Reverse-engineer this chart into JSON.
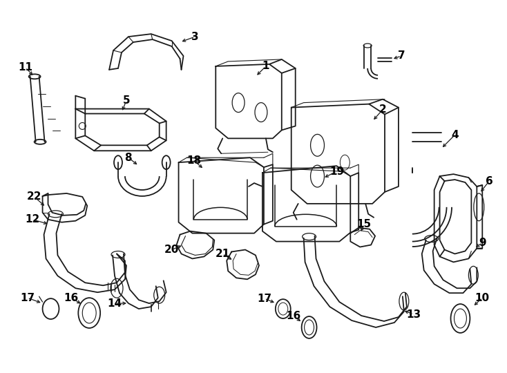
{
  "bg_color": "#ffffff",
  "line_color": "#1a1a1a",
  "lw": 1.3,
  "fig_w": 7.34,
  "fig_h": 5.4,
  "dpi": 100
}
